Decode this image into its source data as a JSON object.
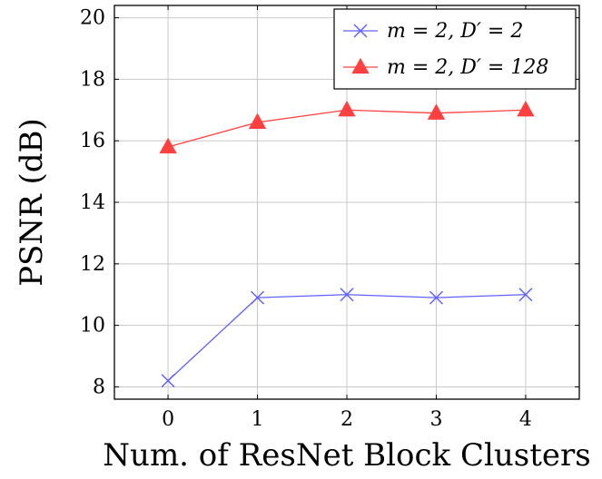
{
  "chart_data": {
    "type": "line",
    "title": "",
    "xlabel": "Num. of ResNet Block Clusters",
    "ylabel": "PSNR (dB)",
    "xlim": [
      -0.6,
      4.6
    ],
    "ylim": [
      7.6,
      20.4
    ],
    "x_ticks": [
      "0",
      "1",
      "2",
      "3",
      "4"
    ],
    "y_ticks": [
      "8",
      "10",
      "12",
      "14",
      "16",
      "18",
      "20"
    ],
    "grid": true,
    "legend_position": "top-right",
    "x": [
      0,
      1,
      2,
      3,
      4
    ],
    "series": [
      {
        "name": "m = 2, D′ = 2",
        "values": [
          8.2,
          10.9,
          11.0,
          10.9,
          11.0
        ],
        "color": "#6060ff",
        "marker": "x"
      },
      {
        "name": "m = 2, D′ = 128",
        "values": [
          15.8,
          16.6,
          17.0,
          16.9,
          17.0
        ],
        "color": "#ff4040",
        "marker": "triangle"
      }
    ]
  }
}
